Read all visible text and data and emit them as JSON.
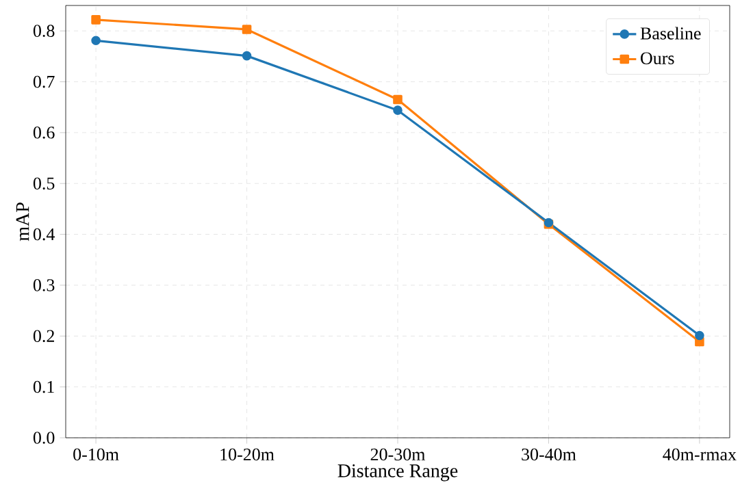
{
  "chart_data": {
    "type": "line",
    "xlabel": "Distance Range",
    "ylabel": "mAP",
    "categories": [
      "0-10m",
      "10-20m",
      "20-30m",
      "30-40m",
      "40m-rmax"
    ],
    "series": [
      {
        "name": "Baseline",
        "color": "#1f77b4",
        "marker": "circle",
        "values": [
          0.781,
          0.751,
          0.644,
          0.423,
          0.201
        ]
      },
      {
        "name": "Ours",
        "color": "#ff7f0e",
        "marker": "square",
        "values": [
          0.822,
          0.803,
          0.665,
          0.42,
          0.189
        ]
      }
    ],
    "ylim": [
      0,
      0.85
    ],
    "yticks": [
      {
        "value": 0,
        "label": "0.0"
      },
      0.1,
      0.2,
      0.3,
      0.4,
      0.5,
      0.6,
      0.7,
      0.8
    ],
    "grid": true,
    "legend": "top right",
    "line_style": "solid"
  }
}
